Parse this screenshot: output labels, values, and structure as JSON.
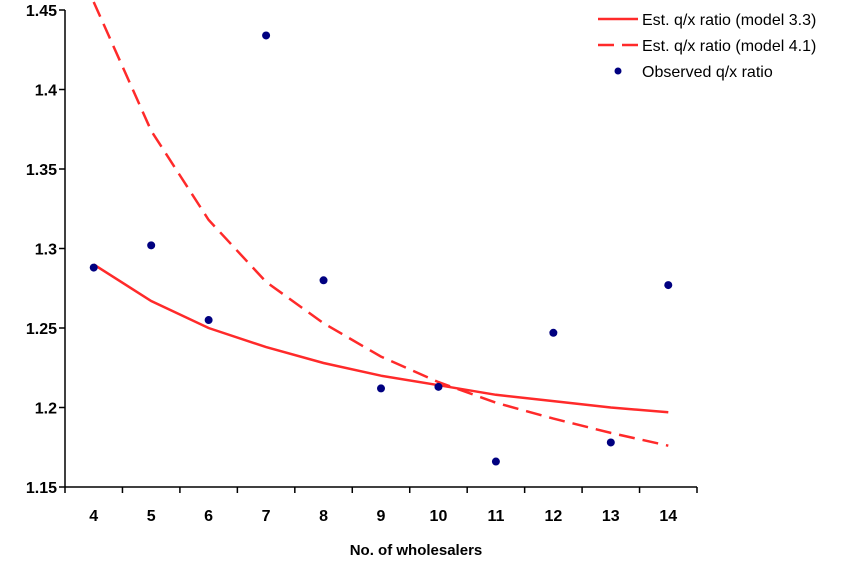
{
  "chart_data": {
    "type": "line",
    "title": "",
    "xlabel": "No. of wholesalers",
    "ylabel": "",
    "x": [
      4,
      5,
      6,
      7,
      8,
      9,
      10,
      11,
      12,
      13,
      14
    ],
    "x_tick_labels": [
      "4",
      "5",
      "6",
      "7",
      "8",
      "9",
      "10",
      "11",
      "12",
      "13",
      "14"
    ],
    "y_tick_labels": [
      "1.15",
      "1.2",
      "1.25",
      "1.3",
      "1.35",
      "1.4",
      "1.45"
    ],
    "xlim": [
      3.5,
      14.5
    ],
    "ylim": [
      1.15,
      1.45
    ],
    "grid": false,
    "legend_position": "top-right",
    "series": [
      {
        "name": "Est. q/x ratio (model 3.3)",
        "style": "solid-line",
        "color": "#ff2a2a",
        "values": [
          1.29,
          1.267,
          1.25,
          1.238,
          1.228,
          1.22,
          1.214,
          1.208,
          1.204,
          1.2,
          1.197
        ]
      },
      {
        "name": "Est. q/x ratio (model 4.1)",
        "style": "dashed-line",
        "color": "#ff2a2a",
        "values": [
          1.455,
          1.374,
          1.318,
          1.279,
          1.253,
          1.232,
          1.216,
          1.203,
          1.193,
          1.184,
          1.176
        ]
      },
      {
        "name": "Observed q/x ratio",
        "style": "markers",
        "color": "#000080",
        "values": [
          1.288,
          1.302,
          1.255,
          1.434,
          1.28,
          1.212,
          1.213,
          1.166,
          1.247,
          1.178,
          1.277
        ]
      }
    ]
  }
}
